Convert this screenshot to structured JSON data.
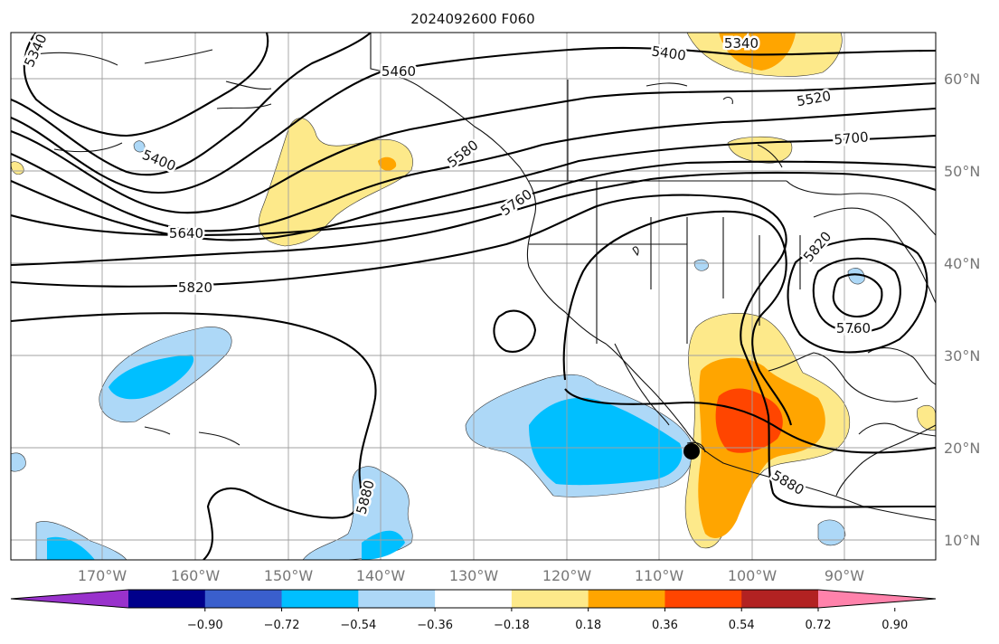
{
  "title": "2024092600 F060",
  "lon_labels": [
    "170°W",
    "160°W",
    "150°W",
    "140°W",
    "130°W",
    "120°W",
    "110°W",
    "100°W",
    "90°W"
  ],
  "lat_labels": [
    "60°N",
    "50°N",
    "40°N",
    "30°N",
    "20°N",
    "10°N"
  ],
  "contour_labels": [
    "5340",
    "5400",
    "5460",
    "5400",
    "5340",
    "5520",
    "5700",
    "5580",
    "5760",
    "5640",
    "5820",
    "5820",
    "5760",
    "5880",
    "5880"
  ],
  "colorbar": {
    "ticks": [
      "−0.90",
      "−0.72",
      "−0.54",
      "−0.36",
      "−0.18",
      "0.18",
      "0.36",
      "0.54",
      "0.72",
      "0.90"
    ],
    "colors": [
      "#9932cc",
      "#00008b",
      "#3a5fcd",
      "#00bfff",
      "#add8f7",
      "#ffffff",
      "#fde98a",
      "#ffa500",
      "#ff4500",
      "#b22222",
      "#ff82ab"
    ]
  },
  "storm_marker": "black-circle"
}
